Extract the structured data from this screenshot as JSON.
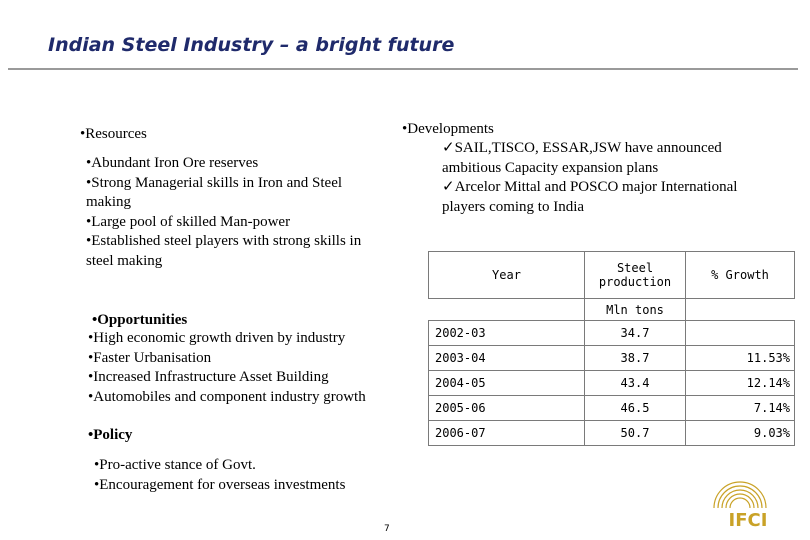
{
  "title": "Indian Steel Industry – a bright future",
  "resources": {
    "heading": "•Resources",
    "items": [
      "•Abundant Iron Ore reserves",
      "•Strong Managerial skills in  Iron and  Steel",
      "making",
      "•Large pool of skilled Man-power",
      "•Established steel players with strong skills in",
      "steel making"
    ]
  },
  "developments": {
    "heading": "•Developments",
    "items": [
      "✓SAIL,TISCO, ESSAR,JSW have announced",
      "ambitious Capacity expansion plans",
      "✓Arcelor Mittal and POSCO major International",
      "players coming to India"
    ]
  },
  "opportunities": {
    "heading": "•Opportunities",
    "items": [
      "•High economic growth driven  by industry",
      "•Faster Urbanisation",
      "•Increased Infrastructure Asset Building",
      "•Automobiles and component industry growth"
    ]
  },
  "policy": {
    "heading": "•Policy",
    "items": [
      "•Pro-active stance of Govt.",
      "•Encouragement for overseas investments"
    ]
  },
  "table": {
    "col_year": "Year",
    "col_prod_line1": "Steel",
    "col_prod_line2": "production",
    "col_growth": "% Growth",
    "unit": "Mln tons",
    "rows": [
      {
        "year": "2002-03",
        "value": "34.7",
        "growth": ""
      },
      {
        "year": "2003-04",
        "value": "38.7",
        "growth": "11.53%"
      },
      {
        "year": "2004-05",
        "value": "43.4",
        "growth": "12.14%"
      },
      {
        "year": "2005-06",
        "value": "46.5",
        "growth": "7.14%"
      },
      {
        "year": "2006-07",
        "value": "50.7",
        "growth": "9.03%"
      }
    ]
  },
  "page_number": "7",
  "logo_text": "IFCI",
  "colors": {
    "title": "#1f2a6b",
    "rule": "#9a9a9a",
    "logo": "#c9a227"
  }
}
